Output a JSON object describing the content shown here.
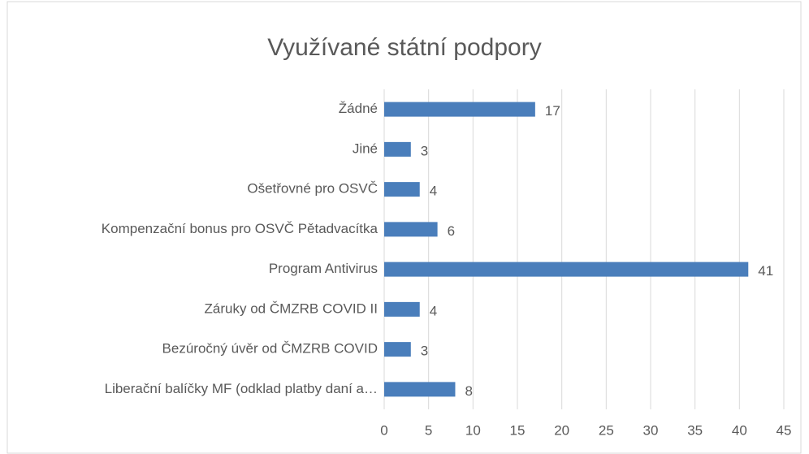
{
  "chart_data": {
    "type": "bar",
    "orientation": "horizontal",
    "title": "Využívané státní podpory",
    "categories": [
      "Žádné",
      "Jiné",
      "Ošetřovné pro OSVČ",
      "Kompenzační bonus pro OSVČ Pětadvacítka",
      "Program Antivirus",
      "Záruky od ČMZRB COVID II",
      "Bezúročný úvěr od ČMZRB COVID",
      "Liberační balíčky MF (odklad platby daní a…"
    ],
    "values": [
      17,
      3,
      4,
      6,
      41,
      4,
      3,
      8
    ],
    "color": "#4a7ebb",
    "xlim": [
      0,
      45
    ],
    "xticks": [
      0,
      5,
      10,
      15,
      20,
      25,
      30,
      35,
      40,
      45
    ],
    "grid": true
  }
}
